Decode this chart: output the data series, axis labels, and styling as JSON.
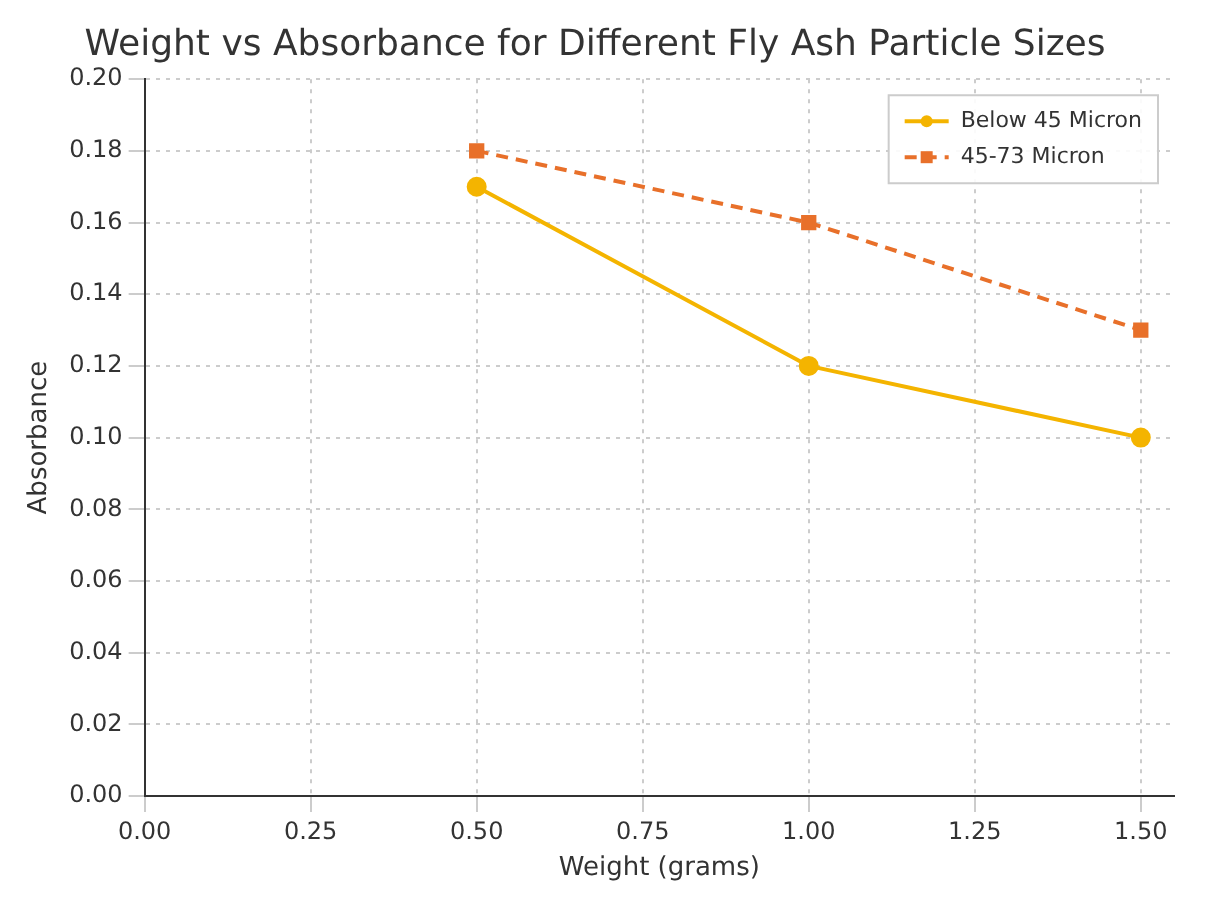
{
  "chart_data": {
    "type": "line",
    "title": "Weight vs Absorbance for Different Fly Ash Particle Sizes",
    "xlabel": "Weight (grams)",
    "ylabel": "Absorbance",
    "x": [
      0.5,
      1.0,
      1.5
    ],
    "series": [
      {
        "name": "Below 45 Micron",
        "color": "#f4b400",
        "values": [
          0.17,
          0.12,
          0.1
        ],
        "marker": "circle",
        "line_style": "solid"
      },
      {
        "name": "45-73 Micron",
        "color": "#e8702a",
        "values": [
          0.18,
          0.16,
          0.13
        ],
        "marker": "square",
        "line_style": "dashed"
      }
    ],
    "xlim": [
      0,
      1.55
    ],
    "xticks": [
      {
        "value": 0,
        "label": "0.00"
      },
      {
        "value": 0.25,
        "label": "0.25"
      },
      {
        "value": 0.5,
        "label": "0.50"
      },
      {
        "value": 0.75,
        "label": "0.75"
      },
      {
        "value": 1,
        "label": "1.00"
      },
      {
        "value": 1.25,
        "label": "1.25"
      },
      {
        "value": 1.5,
        "label": "1.50"
      }
    ],
    "ylim": [
      0,
      0.2
    ],
    "yticks": [
      {
        "value": 0,
        "label": "0.00"
      },
      {
        "value": 0.02,
        "label": "0.02"
      },
      {
        "value": 0.04,
        "label": "0.04"
      },
      {
        "value": 0.06,
        "label": "0.06"
      },
      {
        "value": 0.08,
        "label": "0.08"
      },
      {
        "value": 0.1,
        "label": "0.10"
      },
      {
        "value": 0.12,
        "label": "0.12"
      },
      {
        "value": 0.14,
        "label": "0.14"
      },
      {
        "value": 0.16,
        "label": "0.16"
      },
      {
        "value": 0.18,
        "label": "0.18"
      },
      {
        "value": 0.2,
        "label": "0.20"
      }
    ],
    "grid": true,
    "legend": "top right"
  }
}
